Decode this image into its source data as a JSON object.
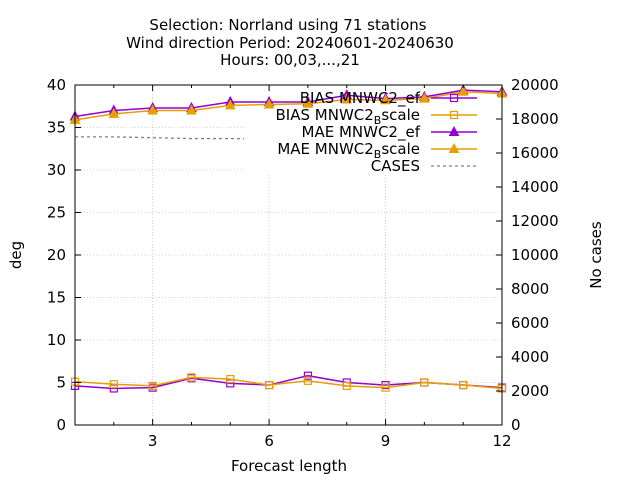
{
  "chart_data": {
    "type": "line",
    "title_lines": [
      "Selection: Norrland using    71 stations",
      "Wind direction   Period: 20240601-20240630",
      "Hours: 00,03,...,21"
    ],
    "xlabel": "Forecast length",
    "ylabel": "deg",
    "y2label": "No cases",
    "xlim": [
      1,
      12
    ],
    "ylim": [
      0,
      40
    ],
    "y2lim": [
      0,
      20000
    ],
    "x_ticks": [
      3,
      6,
      9,
      12
    ],
    "y_ticks": [
      0,
      5,
      10,
      15,
      20,
      25,
      30,
      35,
      40
    ],
    "y2_ticks": [
      0,
      2000,
      4000,
      6000,
      8000,
      10000,
      12000,
      14000,
      16000,
      18000,
      20000
    ],
    "grid": true,
    "legend_position": "top-right",
    "x": [
      1,
      2,
      3,
      4,
      5,
      6,
      7,
      8,
      9,
      10,
      11,
      12
    ],
    "series": [
      {
        "name": "BIAS MNWC2_ef",
        "label_main": "BIAS MNWC2",
        "label_sub": "",
        "label_end": "_ef",
        "color": "#9400d3",
        "marker": "square",
        "axis": "y1",
        "values": [
          4.6,
          4.3,
          4.4,
          5.5,
          4.9,
          4.7,
          5.8,
          5.0,
          4.7,
          5.0,
          4.7,
          4.4
        ]
      },
      {
        "name": "BIAS MNWC2_Bscale",
        "label_main": "BIAS MNWC2",
        "label_sub": "B",
        "label_end": "scale",
        "color": "#e69f00",
        "marker": "square",
        "axis": "y1",
        "values": [
          5.1,
          4.8,
          4.6,
          5.6,
          5.4,
          4.7,
          5.2,
          4.6,
          4.4,
          5.0,
          4.7,
          4.3
        ]
      },
      {
        "name": "MAE MNWC2_ef",
        "label_main": "MAE MNWC2",
        "label_sub": "",
        "label_end": "_ef",
        "color": "#9400d3",
        "marker": "triangle",
        "axis": "y1",
        "values": [
          36.3,
          37.0,
          37.3,
          37.3,
          38.0,
          38.0,
          38.0,
          38.8,
          38.4,
          38.6,
          39.4,
          39.2
        ]
      },
      {
        "name": "MAE MNWC2_Bscale",
        "label_main": "MAE MNWC2",
        "label_sub": "B",
        "label_end": "scale",
        "color": "#e69f00",
        "marker": "triangle",
        "axis": "y1",
        "values": [
          35.9,
          36.6,
          37.0,
          37.0,
          37.6,
          37.7,
          37.8,
          38.3,
          38.2,
          38.4,
          39.2,
          39.0
        ]
      },
      {
        "name": "CASES",
        "label_main": "CASES",
        "label_sub": "",
        "label_end": "",
        "color": "#808080",
        "marker": "none",
        "dashed": true,
        "axis": "y2",
        "values": [
          16950,
          16950,
          16900,
          16850,
          16850,
          16800,
          16800,
          16750,
          16700,
          16700,
          16650,
          16600
        ]
      }
    ]
  }
}
